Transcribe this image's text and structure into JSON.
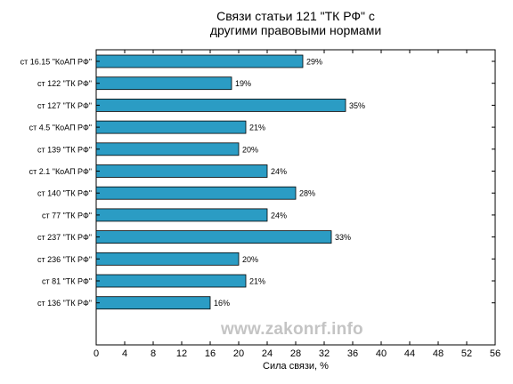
{
  "chart_data": {
    "type": "bar",
    "orientation": "horizontal",
    "title": "Связи статьи 121 \"ТК РФ\" с",
    "subtitle": "другими правовыми нормами",
    "xlabel": "Сила связи, %",
    "ylabel": "",
    "xlim": [
      0,
      56
    ],
    "xticks": [
      0,
      4,
      8,
      12,
      16,
      20,
      24,
      28,
      32,
      36,
      40,
      44,
      48,
      52,
      56
    ],
    "grid": false,
    "bar_color": "#2b9cc4",
    "categories": [
      "ст 16.15 \"КоАП РФ\"",
      "ст 122 \"ТК РФ\"",
      "ст 127 \"ТК РФ\"",
      "ст 4.5 \"КоАП РФ\"",
      "ст 139 \"ТК РФ\"",
      "ст 2.1 \"КоАП РФ\"",
      "ст 140 \"ТК РФ\"",
      "ст 77 \"ТК РФ\"",
      "ст 237 \"ТК РФ\"",
      "ст 236 \"ТК РФ\"",
      "ст 81 \"ТК РФ\"",
      "ст 136 \"ТК РФ\""
    ],
    "values": [
      29,
      19,
      35,
      21,
      20,
      24,
      28,
      24,
      33,
      20,
      21,
      16
    ],
    "value_labels": [
      "29%",
      "19%",
      "35%",
      "21%",
      "20%",
      "24%",
      "28%",
      "24%",
      "33%",
      "20%",
      "21%",
      "16%"
    ]
  },
  "watermark": "www.zakonrf.info"
}
